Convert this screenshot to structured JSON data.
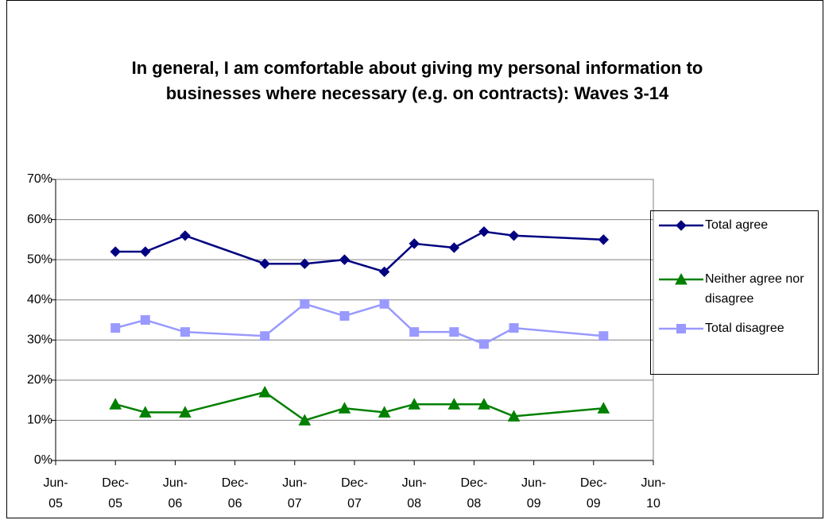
{
  "chart_data": {
    "type": "line",
    "title": "In general, I am comfortable about giving my personal information to businesses where necessary (e.g. on contracts): Waves 3-14",
    "x": [
      "2005-12",
      "2006-03",
      "2006-07",
      "2007-03",
      "2007-07",
      "2007-11",
      "2008-03",
      "2008-06",
      "2008-10",
      "2009-01",
      "2009-04",
      "2010-01"
    ],
    "series": [
      {
        "name": "Total agree",
        "color": "#000080",
        "marker": "diamond",
        "values": [
          52,
          52,
          56,
          49,
          49,
          50,
          47,
          54,
          53,
          57,
          56,
          55
        ]
      },
      {
        "name": "Neither agree nor disagree",
        "color": "#008000",
        "marker": "triangle",
        "values": [
          14,
          12,
          12,
          17,
          10,
          13,
          12,
          14,
          14,
          14,
          11,
          13
        ]
      },
      {
        "name": "Total disagree",
        "color": "#9999ff",
        "marker": "square",
        "values": [
          33,
          35,
          32,
          31,
          39,
          36,
          39,
          32,
          32,
          29,
          33,
          31
        ]
      }
    ],
    "xlim": [
      "2005-06",
      "2010-06"
    ],
    "xticks": [
      {
        "value": "2005-06",
        "label": "Jun-05"
      },
      {
        "value": "2005-12",
        "label": "Dec-05"
      },
      {
        "value": "2006-06",
        "label": "Jun-06"
      },
      {
        "value": "2006-12",
        "label": "Dec-06"
      },
      {
        "value": "2007-06",
        "label": "Jun-07"
      },
      {
        "value": "2007-12",
        "label": "Dec-07"
      },
      {
        "value": "2008-06",
        "label": "Jun-08"
      },
      {
        "value": "2008-12",
        "label": "Dec-08"
      },
      {
        "value": "2009-06",
        "label": "Jun-09"
      },
      {
        "value": "2009-12",
        "label": "Dec-09"
      },
      {
        "value": "2010-06",
        "label": "Jun-10"
      }
    ],
    "ylim": [
      0,
      70
    ],
    "yticks": [
      {
        "value": 0,
        "label": "0%"
      },
      {
        "value": 10,
        "label": "10%"
      },
      {
        "value": 20,
        "label": "20%"
      },
      {
        "value": 30,
        "label": "30%"
      },
      {
        "value": 40,
        "label": "40%"
      },
      {
        "value": 50,
        "label": "50%"
      },
      {
        "value": 60,
        "label": "60%"
      },
      {
        "value": 70,
        "label": "70%"
      }
    ],
    "grid": true,
    "legend": "right"
  }
}
